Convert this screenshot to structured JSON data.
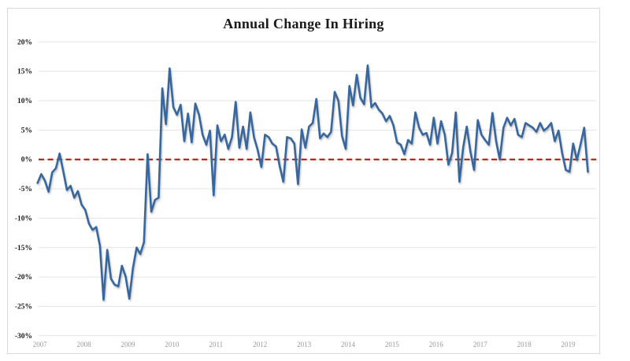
{
  "title": "Annual Change In Hiring",
  "colors": {
    "series_blue": "#38679E",
    "zero_line_red": "#C00000",
    "gridline_gray": "#e3e3e3",
    "axis_text_dark": "#1a1a1a",
    "axis_text_gray": "#999999",
    "frame_border": "#d8d8d8",
    "background": "#ffffff"
  },
  "chart_data": {
    "type": "line",
    "title": "Annual Change In Hiring",
    "xlabel": "",
    "ylabel": "",
    "ylim": [
      -30,
      20
    ],
    "y_tick_step": 5,
    "y_tick_labels": [
      "20%",
      "15%",
      "10%",
      "5%",
      "0%",
      "-5%",
      "-10%",
      "-15%",
      "-20%",
      "-25%",
      "-30%"
    ],
    "x_tick_labels": [
      "2007",
      "2008",
      "2009",
      "2010",
      "2011",
      "2012",
      "2013",
      "2014",
      "2015",
      "2016",
      "2017",
      "2018",
      "2019"
    ],
    "x_start": "2007-01",
    "x_frequency": "monthly",
    "grid": "horizontal",
    "legend": "none",
    "zero_line": {
      "value": 0,
      "style": "dashed",
      "color": "#C00000"
    },
    "series": [
      {
        "name": "Annual Change In Hiring (%)",
        "color": "#38679E",
        "values": [
          -4.0,
          -2.5,
          -3.6,
          -5.5,
          -2.2,
          -1.5,
          1.0,
          -2.0,
          -5.2,
          -4.5,
          -6.5,
          -5.4,
          -7.7,
          -8.6,
          -10.9,
          -12.0,
          -11.5,
          -14.7,
          -23.9,
          -15.4,
          -20.3,
          -21.3,
          -21.6,
          -18.1,
          -19.9,
          -23.7,
          -18.5,
          -15.0,
          -16.1,
          -14.1,
          0.9,
          -8.9,
          -6.9,
          -6.5,
          12.1,
          6.0,
          15.5,
          8.9,
          7.6,
          9.3,
          3.1,
          7.8,
          2.9,
          9.5,
          7.6,
          4.2,
          2.5,
          4.9,
          -6.1,
          5.8,
          3.1,
          4.2,
          1.8,
          3.8,
          9.8,
          2.0,
          5.6,
          1.8,
          8.0,
          3.8,
          1.6,
          -1.3,
          4.2,
          3.8,
          2.7,
          2.2,
          -1.1,
          -3.8,
          3.8,
          3.6,
          2.7,
          -4.2,
          5.1,
          2.0,
          5.6,
          6.2,
          10.3,
          3.6,
          4.4,
          3.8,
          4.7,
          11.5,
          10.0,
          4.0,
          1.8,
          12.5,
          9.2,
          14.4,
          10.5,
          9.4,
          16.0,
          8.9,
          9.6,
          8.5,
          7.8,
          6.5,
          7.4,
          5.8,
          2.9,
          2.5,
          0.9,
          3.3,
          2.7,
          8.0,
          5.4,
          4.2,
          4.5,
          2.5,
          7.1,
          2.7,
          6.5,
          4.2,
          -0.9,
          1.1,
          8.0,
          -3.8,
          2.0,
          5.6,
          1.3,
          -1.8,
          6.7,
          4.2,
          3.3,
          2.5,
          7.9,
          3.1,
          0.0,
          5.4,
          7.1,
          5.8,
          6.9,
          4.2,
          3.8,
          6.2,
          5.8,
          5.4,
          4.7,
          6.2,
          4.9,
          5.4,
          6.2,
          3.1,
          4.9,
          1.1,
          -1.8,
          -2.1,
          2.7,
          -0.1,
          2.5,
          5.4,
          -2.1
        ]
      }
    ]
  }
}
